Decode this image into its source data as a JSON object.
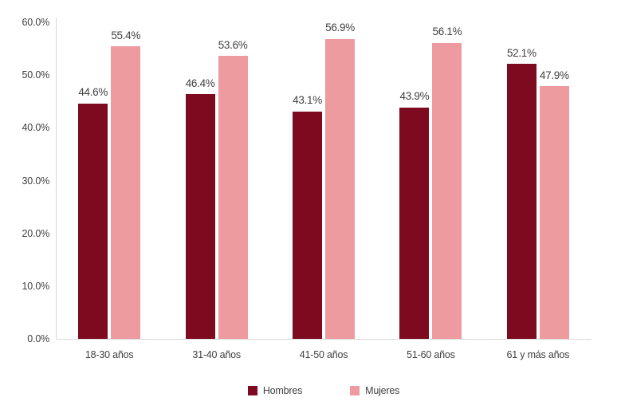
{
  "chart_data": {
    "type": "bar",
    "title": "",
    "xlabel": "",
    "ylabel": "",
    "categories": [
      "18-30 años",
      "31-40 años",
      "41-50 años",
      "51-60 años",
      "61 y más años"
    ],
    "series": [
      {
        "name": "Hombres",
        "color": "#7D0A1E",
        "values": [
          44.6,
          46.4,
          43.1,
          43.9,
          52.1
        ]
      },
      {
        "name": "Mujeres",
        "color": "#ED9B9E",
        "values": [
          55.4,
          53.6,
          56.9,
          56.1,
          47.9
        ]
      }
    ],
    "value_labels": [
      [
        "44.6%",
        "46.4%",
        "43.1%",
        "43.9%",
        "52.1%"
      ],
      [
        "55.4%",
        "53.6%",
        "56.9%",
        "56.1%",
        "47.9%"
      ]
    ],
    "y_axis": {
      "min": 0,
      "max": 60,
      "tick_step": 10,
      "tick_labels": [
        "60.0%",
        "50.0%",
        "40.0%",
        "30.0%",
        "20.0%",
        "10.0%",
        "0.0%"
      ]
    },
    "grid": false,
    "legend_position": "bottom",
    "colors": {
      "axis_line": "#D9D9D9",
      "label_text": "#404040"
    }
  }
}
